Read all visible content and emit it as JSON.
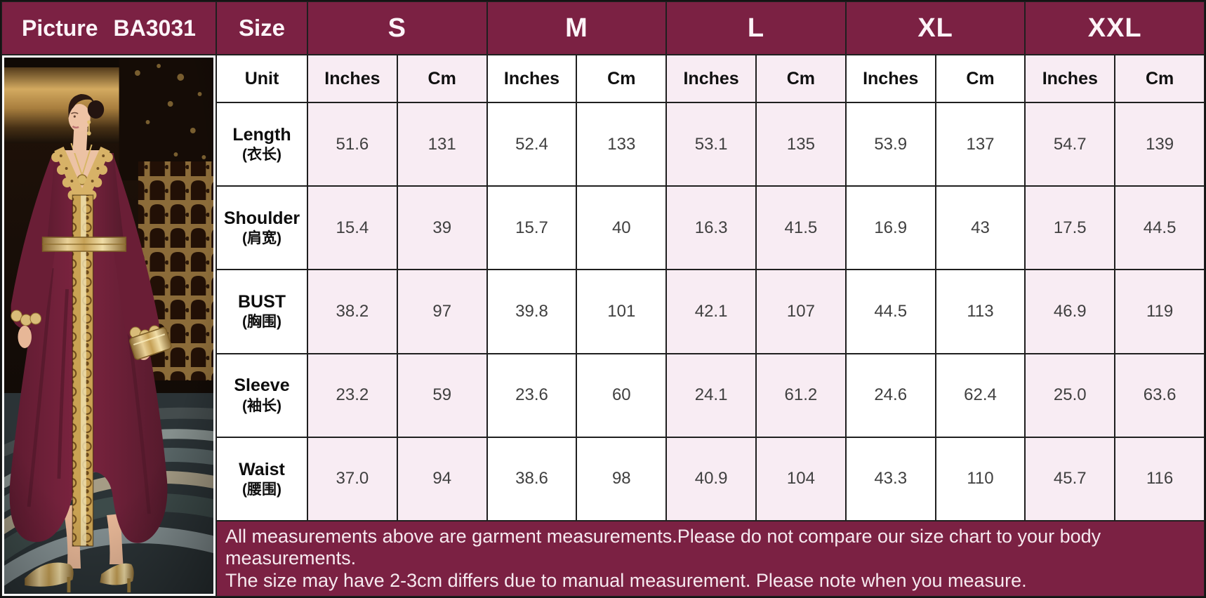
{
  "header": {
    "picture_label": "Picture",
    "model_code": "BA3031",
    "size_label": "Size",
    "sizes": [
      "S",
      "M",
      "L",
      "XL",
      "XXL"
    ]
  },
  "table": {
    "unit_label": "Unit",
    "unit_columns": [
      "Inches",
      "Cm",
      "Inches",
      "Cm",
      "Inches",
      "Cm",
      "Inches",
      "Cm",
      "Inches",
      "Cm"
    ],
    "rows": [
      {
        "label": "Length",
        "label_cn": "(衣长)",
        "values": [
          "51.6",
          "131",
          "52.4",
          "133",
          "53.1",
          "135",
          "53.9",
          "137",
          "54.7",
          "139"
        ]
      },
      {
        "label": "Shoulder",
        "label_cn": "(肩宽)",
        "values": [
          "15.4",
          "39",
          "15.7",
          "40",
          "16.3",
          "41.5",
          "16.9",
          "43",
          "17.5",
          "44.5"
        ]
      },
      {
        "label": "BUST",
        "label_cn": "(胸围)",
        "values": [
          "38.2",
          "97",
          "39.8",
          "101",
          "42.1",
          "107",
          "44.5",
          "113",
          "46.9",
          "119"
        ]
      },
      {
        "label": "Sleeve",
        "label_cn": "(袖长)",
        "values": [
          "23.2",
          "59",
          "23.6",
          "60",
          "24.1",
          "61.2",
          "24.6",
          "62.4",
          "25.0",
          "63.6"
        ]
      },
      {
        "label": "Waist",
        "label_cn": "(腰围)",
        "values": [
          "37.0",
          "94",
          "38.6",
          "98",
          "40.9",
          "104",
          "43.3",
          "110",
          "45.7",
          "116"
        ]
      }
    ]
  },
  "notes": {
    "line1": "All measurements above are garment measurements.Please do not compare our size chart to your body measurements.",
    "line2": "The size may have 2-3cm differs due to manual measurement. Please note when you measure."
  },
  "photo": {
    "description": "Model wearing a burgundy kaftan dress with gold embroidered V-neck trim, gold belt, gold clutch and gold heels"
  },
  "colors": {
    "band_maroon": "#7b2143",
    "cell_pink": "#f8ecf3",
    "cell_white": "#ffffff",
    "grid_border": "#1f1f1f",
    "header_text": "#fdf4f8",
    "value_text": "#404040",
    "dress_burgundy": "#6f1f38",
    "trim_gold": "#d7b267"
  }
}
